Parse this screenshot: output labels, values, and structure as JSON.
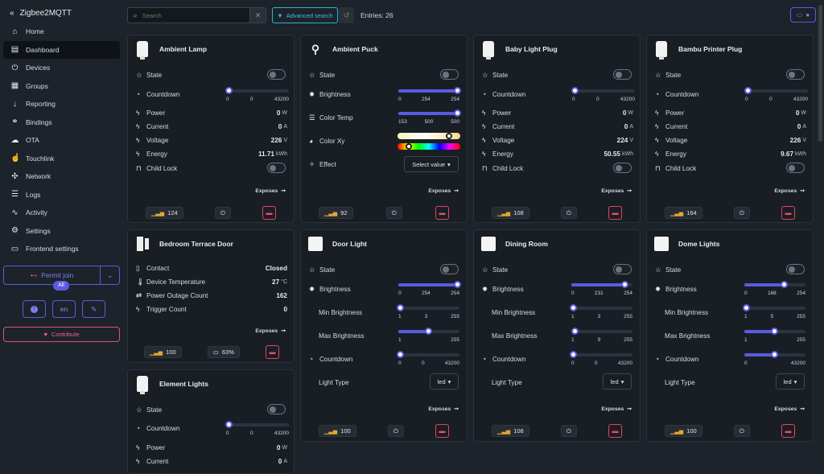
{
  "app": {
    "title": "Zigbee2MQTT"
  },
  "nav": [
    {
      "label": "Home",
      "icon": "home-icon",
      "glyph": "⌂"
    },
    {
      "label": "Dashboard",
      "icon": "dashboard-icon",
      "glyph": "▤"
    },
    {
      "label": "Devices",
      "icon": "plug-icon",
      "glyph": "⏻"
    },
    {
      "label": "Groups",
      "icon": "groups-icon",
      "glyph": "▦"
    },
    {
      "label": "Reporting",
      "icon": "reporting-icon",
      "glyph": "↓"
    },
    {
      "label": "Bindings",
      "icon": "link-icon",
      "glyph": "⚭"
    },
    {
      "label": "OTA",
      "icon": "cloud-icon",
      "glyph": "☁"
    },
    {
      "label": "Touchlink",
      "icon": "touchlink-icon",
      "glyph": "☝"
    },
    {
      "label": "Network",
      "icon": "network-icon",
      "glyph": "✣"
    },
    {
      "label": "Logs",
      "icon": "logs-icon",
      "glyph": "☰"
    },
    {
      "label": "Activity",
      "icon": "activity-icon",
      "glyph": "∿"
    },
    {
      "label": "Settings",
      "icon": "gear-icon",
      "glyph": "⚙"
    },
    {
      "label": "Frontend settings",
      "icon": "monitor-icon",
      "glyph": "▭"
    }
  ],
  "permit": {
    "label": "Permit join",
    "badge": "All"
  },
  "language": "en",
  "contribute": "Contribute",
  "search": {
    "placeholder": "Search"
  },
  "advanced_search": "Advanced search",
  "entries": "Entries: 26",
  "exposes": "Exposes",
  "cards": {
    "ambient_lamp": {
      "title": "Ambient Lamp",
      "state": "State",
      "countdown": "Countdown",
      "cd_ticks": [
        "0",
        "0",
        "43200"
      ],
      "power": "Power",
      "power_v": "0",
      "power_u": "W",
      "current": "Current",
      "current_v": "0",
      "current_u": "A",
      "voltage": "Voltage",
      "voltage_v": "226",
      "voltage_u": "V",
      "energy": "Energy",
      "energy_v": "11.71",
      "energy_u": "kWh",
      "child_lock": "Child Lock",
      "lqi": "124"
    },
    "ambient_puck": {
      "title": "Ambient Puck",
      "state": "State",
      "brightness": "Brightness",
      "br_ticks": [
        "0",
        "254",
        "254"
      ],
      "color_temp": "Color Temp",
      "ct_ticks": [
        "153",
        "500",
        "500"
      ],
      "color_xy": "Color Xy",
      "effect": "Effect",
      "effect_select": "Select value",
      "lqi": "92"
    },
    "baby_light_plug": {
      "title": "Baby Light Plug",
      "state": "State",
      "countdown": "Countdown",
      "cd_ticks": [
        "0",
        "0",
        "43200"
      ],
      "power": "Power",
      "power_v": "0",
      "power_u": "W",
      "current": "Current",
      "current_v": "0",
      "current_u": "A",
      "voltage": "Voltage",
      "voltage_v": "224",
      "voltage_u": "V",
      "energy": "Energy",
      "energy_v": "50.55",
      "energy_u": "kWh",
      "child_lock": "Child Lock",
      "lqi": "108"
    },
    "bambu_printer_plug": {
      "title": "Bambu Printer Plug",
      "state": "State",
      "countdown": "Countdown",
      "cd_ticks": [
        "0",
        "0",
        "43200"
      ],
      "power": "Power",
      "power_v": "0",
      "power_u": "W",
      "current": "Current",
      "current_v": "0",
      "current_u": "A",
      "voltage": "Voltage",
      "voltage_v": "226",
      "voltage_u": "V",
      "energy": "Energy",
      "energy_v": "9.67",
      "energy_u": "kWh",
      "child_lock": "Child Lock",
      "lqi": "164"
    },
    "bedroom_terrace_door": {
      "title": "Bedroom Terrace Door",
      "contact": "Contact",
      "contact_v": "Closed",
      "device_temperature": "Device Temperature",
      "temp_v": "27",
      "temp_u": "°C",
      "power_outage": "Power Outage Count",
      "power_outage_v": "162",
      "trigger": "Trigger Count",
      "trigger_v": "0",
      "lqi": "100",
      "battery": "63%"
    },
    "door_light": {
      "title": "Door Light",
      "state": "State",
      "brightness": "Brightness",
      "br_ticks": [
        "0",
        "254",
        "254"
      ],
      "min_brightness": "Min Brightness",
      "min_ticks": [
        "1",
        "3",
        "255"
      ],
      "max_brightness": "Max Brightness",
      "max_ticks": [
        "1",
        "",
        "255"
      ],
      "countdown": "Countdown",
      "cd_ticks": [
        "0",
        "0",
        "43200"
      ],
      "light_type": "Light Type",
      "light_type_v": "led",
      "lqi": "100"
    },
    "dining_room": {
      "title": "Dining Room",
      "state": "State",
      "brightness": "Brightness",
      "br_ticks": [
        "0",
        "231",
        "254"
      ],
      "min_brightness": "Min Brightness",
      "min_ticks": [
        "1",
        "3",
        "255"
      ],
      "max_brightness": "Max Brightness",
      "max_ticks": [
        "1",
        "9",
        "255"
      ],
      "countdown": "Countdown",
      "cd_ticks": [
        "0",
        "0",
        "43200"
      ],
      "light_type": "Light Type",
      "light_type_v": "led",
      "lqi": "108"
    },
    "dome_lights": {
      "title": "Dome Lights",
      "state": "State",
      "brightness": "Brightness",
      "br_ticks": [
        "0",
        "168",
        "254"
      ],
      "min_brightness": "Min Brightness",
      "min_ticks": [
        "1",
        "5",
        "255"
      ],
      "max_brightness": "Max Brightness",
      "max_ticks": [
        "1",
        "",
        "255"
      ],
      "countdown": "Countdown",
      "cd_ticks": [
        "0",
        "",
        "43200"
      ],
      "light_type": "Light Type",
      "light_type_v": "led",
      "lqi": "100"
    },
    "element_lights": {
      "title": "Element Lights",
      "state": "State",
      "countdown": "Countdown",
      "cd_ticks": [
        "0",
        "0",
        "43200"
      ],
      "power": "Power",
      "power_v": "0",
      "power_u": "W",
      "current": "Current",
      "current_v": "0",
      "current_u": "A"
    }
  }
}
